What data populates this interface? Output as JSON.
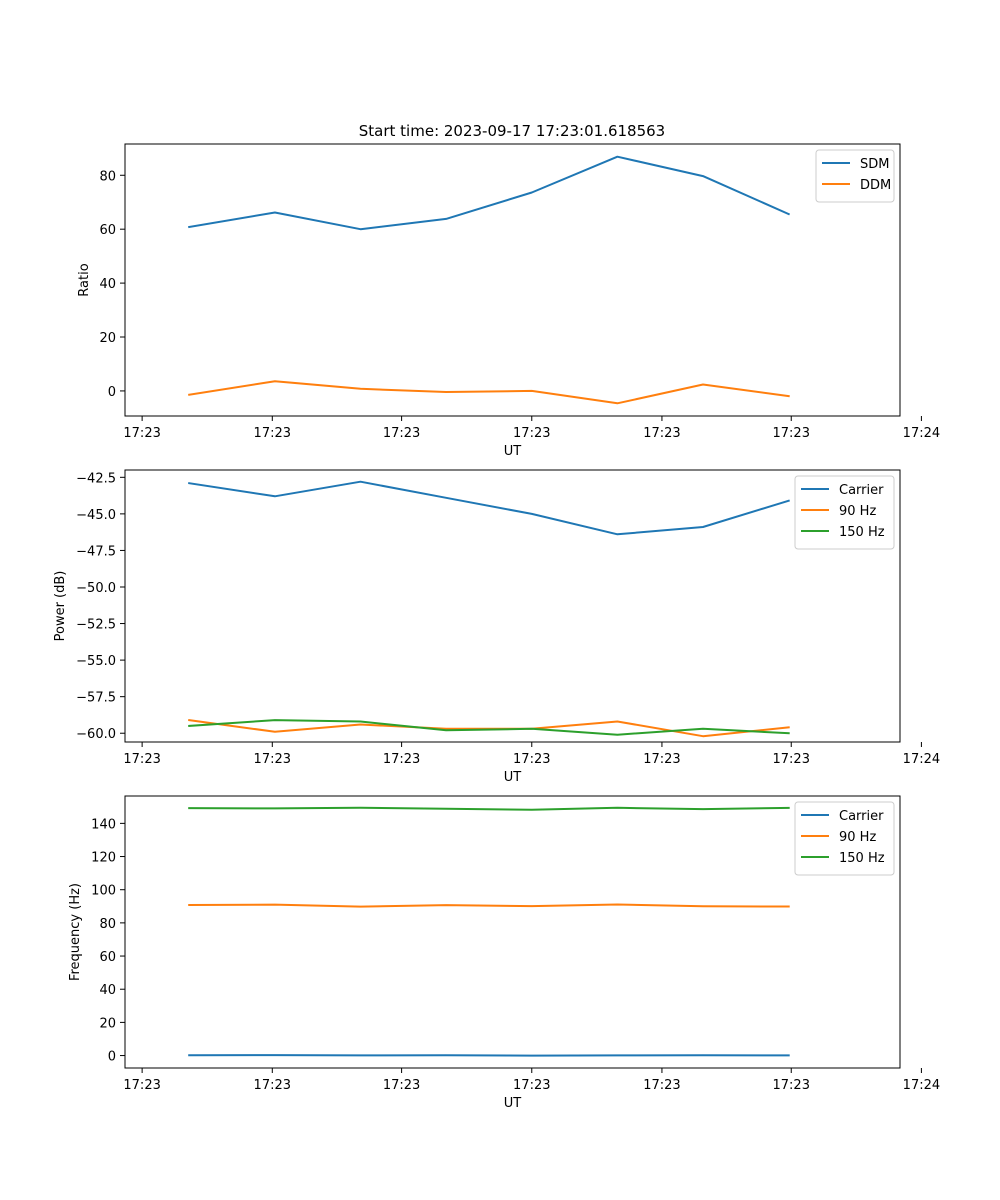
{
  "figure": {
    "title": "Start time: 2023-09-17 17:23:01.618563"
  },
  "chart_data": [
    {
      "type": "line",
      "title": "Start time: 2023-09-17 17:23:01.618563",
      "xlabel": "UT",
      "ylabel": "Ratio",
      "x": [
        1,
        2,
        3,
        4,
        5,
        6,
        7,
        8
      ],
      "xlim": [
        0.25,
        9.3
      ],
      "x_ticks": [
        0.45,
        1.97,
        3.48,
        5.0,
        6.52,
        8.03,
        9.55
      ],
      "x_tick_labels": [
        "17:23",
        "17:23",
        "17:23",
        "17:23",
        "17:23",
        "17:23",
        "17:24"
      ],
      "ylim": [
        -9.3,
        91.6
      ],
      "y_ticks": [
        0,
        20,
        40,
        60,
        80
      ],
      "y_tick_labels": [
        "0",
        "20",
        "40",
        "60",
        "80"
      ],
      "legend_position": "upper right",
      "series": [
        {
          "name": "SDM",
          "color": "#1f77b4",
          "values": [
            60.8,
            66.2,
            60.0,
            63.8,
            73.6,
            86.9,
            79.7,
            65.6
          ]
        },
        {
          "name": "DDM",
          "color": "#ff7f0e",
          "values": [
            -1.4,
            3.6,
            0.8,
            -0.4,
            0.0,
            -4.6,
            2.4,
            -1.9
          ]
        }
      ]
    },
    {
      "type": "line",
      "title": "",
      "xlabel": "UT",
      "ylabel": "Power (dB)",
      "x": [
        1,
        2,
        3,
        4,
        5,
        6,
        7,
        8
      ],
      "xlim": [
        0.25,
        9.3
      ],
      "x_ticks": [
        0.45,
        1.97,
        3.48,
        5.0,
        6.52,
        8.03,
        9.55
      ],
      "x_tick_labels": [
        "17:23",
        "17:23",
        "17:23",
        "17:23",
        "17:23",
        "17:23",
        "17:24"
      ],
      "ylim": [
        -60.6,
        -42.0
      ],
      "y_ticks": [
        -60.0,
        -57.5,
        -55.0,
        -52.5,
        -50.0,
        -47.5,
        -45.0,
        -42.5
      ],
      "y_tick_labels": [
        "−60.0",
        "−57.5",
        "−55.0",
        "−52.5",
        "−50.0",
        "−47.5",
        "−45.0",
        "−42.5"
      ],
      "legend_position": "upper right",
      "series": [
        {
          "name": "Carrier",
          "color": "#1f77b4",
          "values": [
            -42.9,
            -43.8,
            -42.8,
            -43.9,
            -45.0,
            -46.4,
            -45.9,
            -44.1
          ]
        },
        {
          "name": "90 Hz",
          "color": "#ff7f0e",
          "values": [
            -59.1,
            -59.9,
            -59.4,
            -59.7,
            -59.7,
            -59.2,
            -60.2,
            -59.6
          ]
        },
        {
          "name": "150 Hz",
          "color": "#2ca02c",
          "values": [
            -59.5,
            -59.1,
            -59.2,
            -59.8,
            -59.7,
            -60.1,
            -59.7,
            -60.0
          ]
        }
      ]
    },
    {
      "type": "line",
      "title": "",
      "xlabel": "UT",
      "ylabel": "Frequency (Hz)",
      "x": [
        1,
        2,
        3,
        4,
        5,
        6,
        7,
        8
      ],
      "xlim": [
        0.25,
        9.3
      ],
      "x_ticks": [
        0.45,
        1.97,
        3.48,
        5.0,
        6.52,
        8.03,
        9.55
      ],
      "x_tick_labels": [
        "17:23",
        "17:23",
        "17:23",
        "17:23",
        "17:23",
        "17:23",
        "17:24"
      ],
      "ylim": [
        -7.5,
        156.5
      ],
      "y_ticks": [
        0,
        20,
        40,
        60,
        80,
        100,
        120,
        140
      ],
      "y_tick_labels": [
        "0",
        "20",
        "40",
        "60",
        "80",
        "100",
        "120",
        "140"
      ],
      "legend_position": "upper right",
      "series": [
        {
          "name": "Carrier",
          "color": "#1f77b4",
          "values": [
            0.2,
            0.3,
            0.1,
            0.2,
            0.0,
            0.1,
            0.2,
            0.1
          ]
        },
        {
          "name": "90 Hz",
          "color": "#ff7f0e",
          "values": [
            90.8,
            91.0,
            89.8,
            90.7,
            90.1,
            91.1,
            90.0,
            89.9
          ]
        },
        {
          "name": "150 Hz",
          "color": "#2ca02c",
          "values": [
            149.2,
            149.0,
            149.4,
            148.8,
            148.2,
            149.4,
            148.6,
            149.3
          ]
        }
      ]
    }
  ]
}
